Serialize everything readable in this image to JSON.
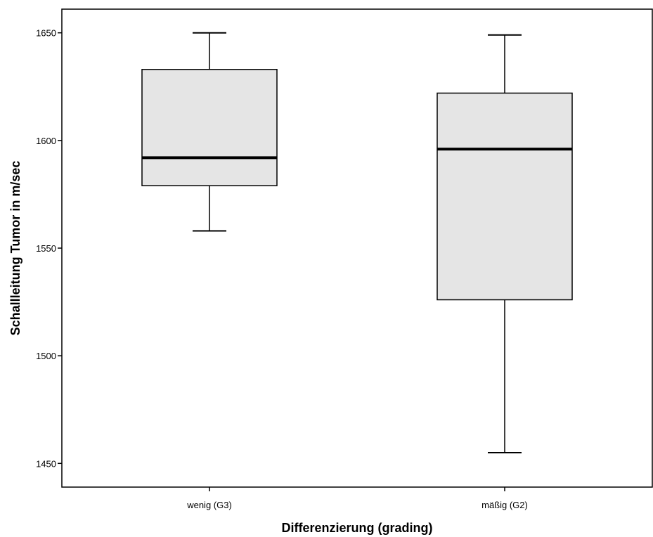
{
  "chart_data": {
    "type": "box",
    "xlabel": "Differenzierung (grading)",
    "ylabel": "Schallleitung Tumor in m/sec",
    "ylim": [
      1439,
      1661
    ],
    "yticks": [
      1450,
      1500,
      1550,
      1600,
      1650
    ],
    "categories": [
      "wenig (G3)",
      "mäßig (G2)"
    ],
    "boxes": [
      {
        "category": "wenig (G3)",
        "min": 1558,
        "q1": 1579,
        "median": 1592,
        "q3": 1633,
        "max": 1650
      },
      {
        "category": "mäßig (G2)",
        "min": 1455,
        "q1": 1526,
        "median": 1596,
        "q3": 1622,
        "max": 1649
      }
    ],
    "colors": {
      "box_fill": "#e5e5e5",
      "stroke": "#000000"
    },
    "grid": false
  }
}
